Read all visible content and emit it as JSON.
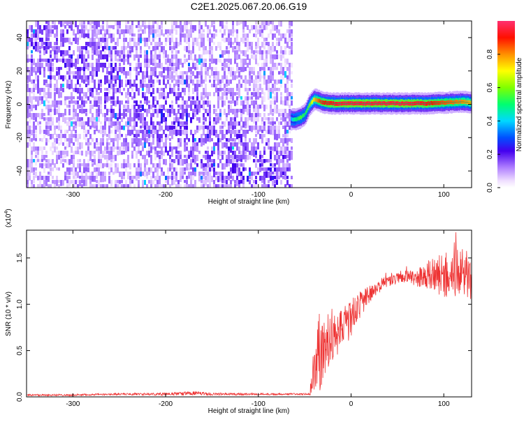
{
  "title": "C2E1.2025.067.20.06.G19",
  "chart_data": [
    {
      "type": "heatmap",
      "xlabel": "Height of straight line (km)",
      "ylabel": "Frequency (Hz)",
      "xlim": [
        -350,
        130
      ],
      "ylim": [
        -50,
        50
      ],
      "xticks": [
        -300,
        -200,
        -100,
        0,
        100
      ],
      "yticks": [
        -40,
        -20,
        0,
        20,
        40
      ],
      "colorbar": {
        "label": "Normalized spectral amplitude",
        "range": [
          0.0,
          1.0
        ],
        "ticks": [
          "0.0",
          "0.2",
          "0.4",
          "0.6",
          "0.8"
        ],
        "tick_values": [
          0.0,
          0.2,
          0.4,
          0.6,
          0.8
        ]
      },
      "signal_trace": {
        "x": [
          -65,
          -60,
          -55,
          -50,
          -45,
          -40,
          -35,
          -30,
          -20,
          -10,
          0,
          20,
          40,
          60,
          80,
          100,
          120,
          130
        ],
        "y": [
          -9,
          -9,
          -8,
          -6,
          0,
          3,
          2,
          1,
          0.5,
          0.5,
          0.5,
          0.5,
          0.5,
          0.5,
          0.5,
          1,
          1.5,
          1
        ],
        "amplitude": [
          0.4,
          0.5,
          0.55,
          0.5,
          0.6,
          0.75,
          0.85,
          0.9,
          0.92,
          0.95,
          0.95,
          0.95,
          0.95,
          0.95,
          0.92,
          0.85,
          0.8,
          0.75
        ]
      },
      "noise_region_x": [
        -350,
        -63
      ]
    },
    {
      "type": "line",
      "xlabel": "Height of straight line (km)",
      "ylabel": "SNR (10 * v/v)",
      "y_multiplier": "(x10",
      "y_multiplier_exp": "4",
      "y_multiplier_close": ")",
      "xlim": [
        -350,
        130
      ],
      "ylim": [
        0,
        1.8
      ],
      "xticks": [
        -300,
        -200,
        -100,
        0,
        100
      ],
      "yticks": [
        0.0,
        0.5,
        1.0,
        1.5
      ],
      "ytick_labels": [
        "0.0",
        "0.5",
        "1.0",
        "1.5"
      ],
      "series": [
        {
          "color": "#ee3333",
          "x": [
            -350,
            -300,
            -250,
            -200,
            -170,
            -150,
            -100,
            -60,
            -45,
            -40,
            -35,
            -30,
            -25,
            -20,
            -15,
            -10,
            -5,
            0,
            10,
            20,
            30,
            40,
            50,
            60,
            70,
            80,
            90,
            100,
            110,
            120,
            130
          ],
          "y": [
            0.02,
            0.02,
            0.03,
            0.03,
            0.04,
            0.03,
            0.03,
            0.03,
            0.03,
            0.2,
            0.45,
            0.55,
            0.6,
            0.7,
            0.65,
            0.8,
            0.75,
            0.85,
            1.0,
            1.1,
            1.2,
            1.25,
            1.28,
            1.3,
            1.28,
            1.3,
            1.32,
            1.3,
            1.33,
            1.35,
            1.3
          ],
          "noise_amplitude": [
            0.01,
            0.01,
            0.01,
            0.015,
            0.02,
            0.015,
            0.01,
            0.01,
            0.01,
            0.25,
            0.45,
            0.35,
            0.3,
            0.3,
            0.25,
            0.25,
            0.22,
            0.2,
            0.15,
            0.1,
            0.08,
            0.06,
            0.06,
            0.07,
            0.08,
            0.15,
            0.2,
            0.25,
            0.25,
            0.25,
            0.25
          ]
        }
      ]
    }
  ]
}
